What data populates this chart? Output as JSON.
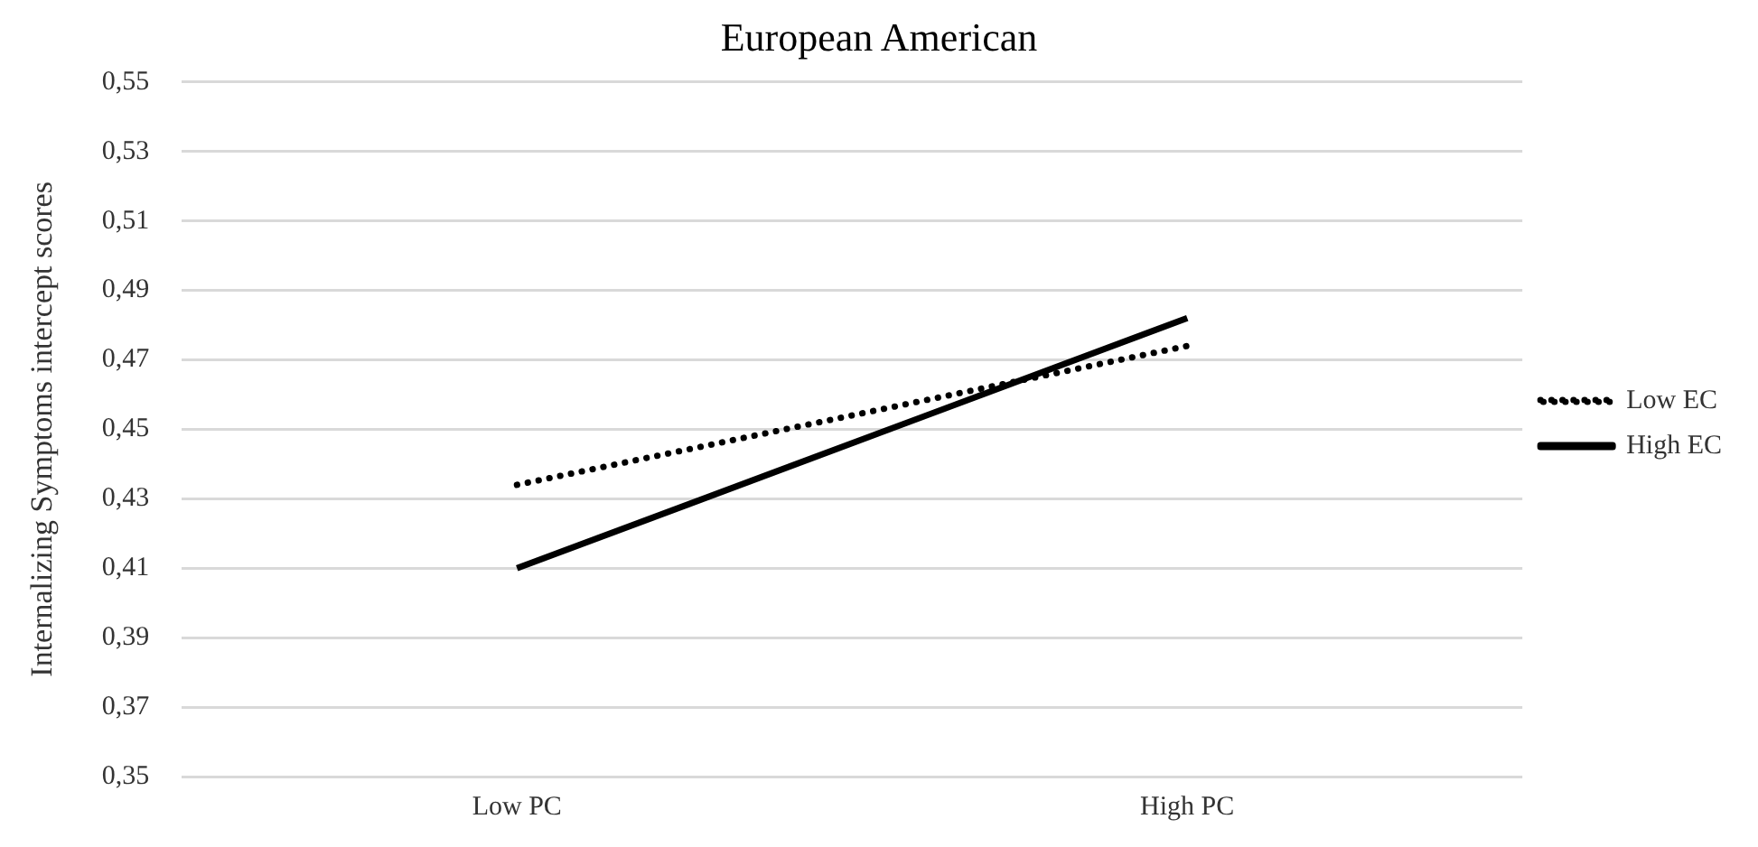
{
  "chart_data": {
    "type": "line",
    "title": "European American",
    "ylabel": "Internalizing Symptoms intercept scores",
    "categories": [
      "Low PC",
      "High PC"
    ],
    "series": [
      {
        "name": "Low EC",
        "color": "#000000",
        "values": [
          0.434,
          0.474
        ],
        "line_style": "dotted"
      },
      {
        "name": "High EC",
        "color": "#000000",
        "values": [
          0.41,
          0.482
        ],
        "line_style": "solid"
      }
    ],
    "ylim": [
      0.35,
      0.55
    ],
    "yticks": [
      {
        "value": 0.35,
        "label": "0,35"
      },
      {
        "value": 0.37,
        "label": "0,37"
      },
      {
        "value": 0.39,
        "label": "0,39"
      },
      {
        "value": 0.41,
        "label": "0,41"
      },
      {
        "value": 0.43,
        "label": "0,43"
      },
      {
        "value": 0.45,
        "label": "0,45"
      },
      {
        "value": 0.47,
        "label": "0,47"
      },
      {
        "value": 0.49,
        "label": "0,49"
      },
      {
        "value": 0.51,
        "label": "0,51"
      },
      {
        "value": 0.53,
        "label": "0,53"
      },
      {
        "value": 0.55,
        "label": "0,55"
      }
    ],
    "grid": "y",
    "legend": "right",
    "marker": "none"
  }
}
